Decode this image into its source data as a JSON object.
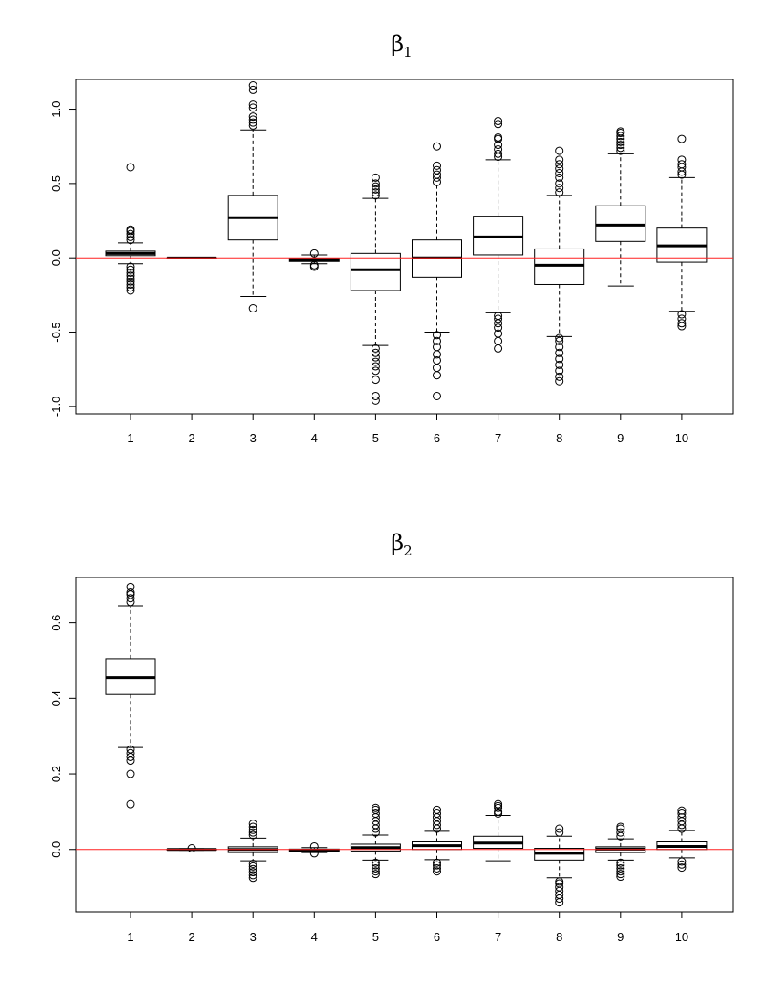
{
  "colors": {
    "reference_line": "#ff2020",
    "box_fill": "#ffffff",
    "stroke": "#000000"
  },
  "chart_data": [
    {
      "type": "box",
      "title": "β1",
      "title_symbol": "β",
      "title_subscript": "1",
      "categories": [
        "1",
        "2",
        "3",
        "4",
        "5",
        "6",
        "7",
        "8",
        "9",
        "10"
      ],
      "ylim": [
        -1.05,
        1.2
      ],
      "yticks": [
        -1.0,
        -0.5,
        0.0,
        0.5,
        1.0
      ],
      "ytick_labels": [
        "-1.0",
        "-0.5",
        "0.0",
        "0.5",
        "1.0"
      ],
      "reference_line": 0,
      "grid": false,
      "boxes": [
        {
          "whisker_low": -0.04,
          "q1": 0.015,
          "median": 0.03,
          "q3": 0.045,
          "whisker_high": 0.1,
          "outliers": [
            -0.22,
            -0.2,
            -0.18,
            -0.16,
            -0.14,
            -0.12,
            -0.1,
            -0.08,
            -0.06,
            0.12,
            0.14,
            0.16,
            0.18,
            0.19,
            0.61
          ]
        },
        {
          "whisker_low": -0.006,
          "q1": -0.003,
          "median": -0.001,
          "q3": 0.001,
          "whisker_high": 0.004,
          "outliers": []
        },
        {
          "whisker_low": -0.26,
          "q1": 0.12,
          "median": 0.27,
          "q3": 0.42,
          "whisker_high": 0.86,
          "outliers": [
            -0.34,
            0.89,
            0.91,
            0.93,
            0.95,
            1.01,
            1.03,
            1.13,
            1.16
          ]
        },
        {
          "whisker_low": -0.04,
          "q1": -0.025,
          "median": -0.015,
          "q3": -0.005,
          "whisker_high": 0.02,
          "outliers": [
            -0.06,
            -0.05,
            0.03
          ]
        },
        {
          "whisker_low": -0.59,
          "q1": -0.22,
          "median": -0.08,
          "q3": 0.03,
          "whisker_high": 0.4,
          "outliers": [
            -0.96,
            -0.93,
            -0.82,
            -0.76,
            -0.73,
            -0.7,
            -0.67,
            -0.64,
            -0.61,
            0.42,
            0.44,
            0.46,
            0.48,
            0.5,
            0.54
          ]
        },
        {
          "whisker_low": -0.5,
          "q1": -0.13,
          "median": 0.0,
          "q3": 0.12,
          "whisker_high": 0.49,
          "outliers": [
            -0.93,
            -0.79,
            -0.74,
            -0.69,
            -0.65,
            -0.6,
            -0.56,
            -0.52,
            0.51,
            0.54,
            0.56,
            0.59,
            0.62,
            0.75
          ]
        },
        {
          "whisker_low": -0.37,
          "q1": 0.02,
          "median": 0.14,
          "q3": 0.28,
          "whisker_high": 0.66,
          "outliers": [
            -0.61,
            -0.56,
            -0.51,
            -0.47,
            -0.44,
            -0.41,
            -0.39,
            0.68,
            0.7,
            0.73,
            0.76,
            0.8,
            0.81,
            0.9,
            0.92
          ]
        },
        {
          "whisker_low": -0.53,
          "q1": -0.18,
          "median": -0.05,
          "q3": 0.06,
          "whisker_high": 0.42,
          "outliers": [
            -0.83,
            -0.8,
            -0.76,
            -0.72,
            -0.68,
            -0.64,
            -0.6,
            -0.56,
            -0.54,
            0.44,
            0.47,
            0.5,
            0.54,
            0.57,
            0.6,
            0.63,
            0.66,
            0.72
          ]
        },
        {
          "whisker_low": -0.19,
          "q1": 0.11,
          "median": 0.22,
          "q3": 0.35,
          "whisker_high": 0.7,
          "outliers": [
            0.72,
            0.74,
            0.76,
            0.78,
            0.8,
            0.82,
            0.84,
            0.85
          ]
        },
        {
          "whisker_low": -0.36,
          "q1": -0.03,
          "median": 0.08,
          "q3": 0.2,
          "whisker_high": 0.54,
          "outliers": [
            -0.46,
            -0.44,
            -0.41,
            -0.38,
            0.56,
            0.58,
            0.61,
            0.63,
            0.66,
            0.8
          ]
        }
      ]
    },
    {
      "type": "box",
      "title": "β2",
      "title_symbol": "β",
      "title_subscript": "2",
      "categories": [
        "1",
        "2",
        "3",
        "4",
        "5",
        "6",
        "7",
        "8",
        "9",
        "10"
      ],
      "ylim": [
        -0.165,
        0.72
      ],
      "yticks": [
        0.0,
        0.2,
        0.4,
        0.6
      ],
      "ytick_labels": [
        "0.0",
        "0.2",
        "0.4",
        "0.6"
      ],
      "reference_line": 0,
      "grid": false,
      "boxes": [
        {
          "whisker_low": 0.27,
          "q1": 0.41,
          "median": 0.455,
          "q3": 0.505,
          "whisker_high": 0.645,
          "outliers": [
            0.12,
            0.2,
            0.235,
            0.245,
            0.255,
            0.265,
            0.655,
            0.665,
            0.675,
            0.68,
            0.695
          ]
        },
        {
          "whisker_low": -0.002,
          "q1": -0.001,
          "median": 0.0,
          "q3": 0.001,
          "whisker_high": 0.002,
          "outliers": [
            0.003
          ]
        },
        {
          "whisker_low": -0.03,
          "q1": -0.008,
          "median": 0.0,
          "q3": 0.007,
          "whisker_high": 0.03,
          "outliers": [
            -0.075,
            -0.068,
            -0.06,
            -0.052,
            -0.045,
            -0.038,
            0.038,
            0.045,
            0.052,
            0.06,
            0.068
          ]
        },
        {
          "whisker_low": -0.008,
          "q1": -0.004,
          "median": -0.002,
          "q3": 0.001,
          "whisker_high": 0.005,
          "outliers": [
            -0.01,
            0.008
          ]
        },
        {
          "whisker_low": -0.028,
          "q1": -0.004,
          "median": 0.005,
          "q3": 0.014,
          "whisker_high": 0.038,
          "outliers": [
            -0.065,
            -0.058,
            -0.05,
            -0.042,
            -0.035,
            0.045,
            0.055,
            0.065,
            0.075,
            0.085,
            0.095,
            0.105,
            0.11
          ]
        },
        {
          "whisker_low": -0.027,
          "q1": 0.0,
          "median": 0.01,
          "q3": 0.02,
          "whisker_high": 0.048,
          "outliers": [
            -0.058,
            -0.05,
            -0.042,
            -0.035,
            0.055,
            0.065,
            0.075,
            0.085,
            0.095,
            0.105
          ]
        },
        {
          "whisker_low": -0.03,
          "q1": 0.003,
          "median": 0.017,
          "q3": 0.035,
          "whisker_high": 0.09,
          "outliers": [
            0.095,
            0.1,
            0.11,
            0.115,
            0.12
          ]
        },
        {
          "whisker_low": -0.075,
          "q1": -0.028,
          "median": -0.01,
          "q3": 0.003,
          "whisker_high": 0.035,
          "outliers": [
            -0.14,
            -0.13,
            -0.12,
            -0.11,
            -0.1,
            -0.09,
            -0.085,
            0.045,
            0.055
          ]
        },
        {
          "whisker_low": -0.028,
          "q1": -0.008,
          "median": 0.001,
          "q3": 0.007,
          "whisker_high": 0.028,
          "outliers": [
            -0.072,
            -0.065,
            -0.058,
            -0.05,
            -0.042,
            -0.035,
            0.035,
            0.045,
            0.055,
            0.06
          ]
        },
        {
          "whisker_low": -0.022,
          "q1": 0.0,
          "median": 0.008,
          "q3": 0.02,
          "whisker_high": 0.05,
          "outliers": [
            -0.048,
            -0.04,
            -0.032,
            0.055,
            0.065,
            0.075,
            0.085,
            0.095,
            0.103
          ]
        }
      ]
    }
  ]
}
